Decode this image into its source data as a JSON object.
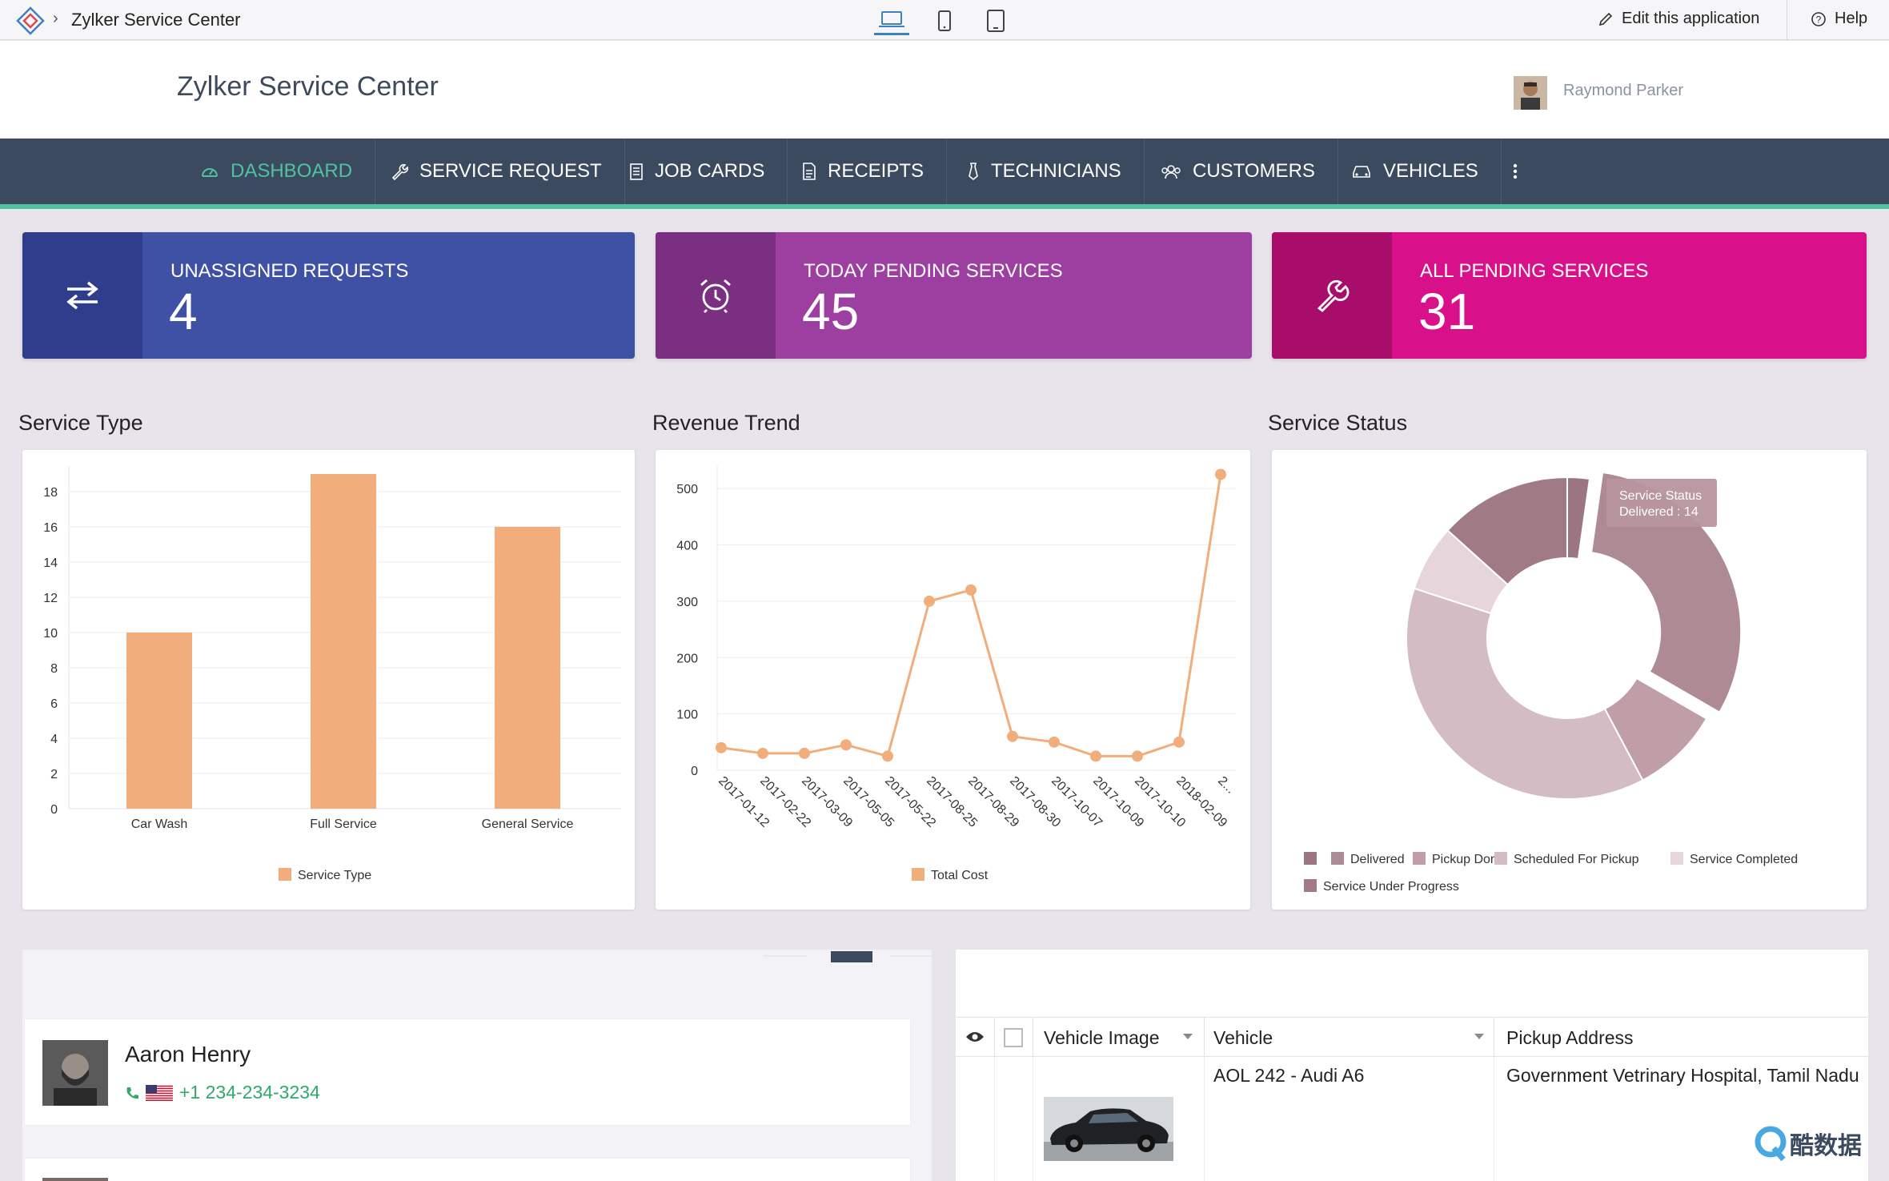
{
  "appbar": {
    "breadcrumb_sep": "›",
    "app_name": "Zylker Service Center",
    "edit_label": "Edit this application",
    "help_label": "Help",
    "devices": [
      "laptop-icon",
      "mobile-icon",
      "tablet-icon"
    ]
  },
  "header": {
    "title": "Zylker Service Center",
    "user_name": "Raymond Parker"
  },
  "nav": {
    "items": [
      {
        "label": "DASHBOARD",
        "icon": "dashboard-icon",
        "active": true
      },
      {
        "label": "SERVICE REQUEST",
        "icon": "wrench-icon"
      },
      {
        "label": "JOB CARDS",
        "icon": "clipboard-icon"
      },
      {
        "label": "RECEIPTS",
        "icon": "document-icon"
      },
      {
        "label": "TECHNICIANS",
        "icon": "tie-icon"
      },
      {
        "label": "CUSTOMERS",
        "icon": "users-icon"
      },
      {
        "label": "VEHICLES",
        "icon": "car-icon"
      }
    ],
    "more_icon": "more-vertical-icon"
  },
  "kpis": [
    {
      "label": "UNASSIGNED REQUESTS",
      "value": "4",
      "icon": "swap-arrows-icon",
      "color": "#3f51a5",
      "icon_bg": "#2e3d8c"
    },
    {
      "label": "TODAY PENDING SERVICES",
      "value": "45",
      "icon": "alarm-clock-icon",
      "color": "#9c3fa1",
      "icon_bg": "#7a2f80"
    },
    {
      "label": "ALL PENDING SERVICES",
      "value": "31",
      "icon": "wrench-icon",
      "color": "#d8108a",
      "icon_bg": "#a80d6c"
    }
  ],
  "sections": {
    "service_type": "Service Type",
    "revenue_trend": "Revenue Trend",
    "service_status": "Service Status"
  },
  "chart_data": [
    {
      "type": "bar",
      "title": "Service Type",
      "categories": [
        "Car Wash",
        "Full Service",
        "General Service"
      ],
      "series": [
        {
          "name": "Service Type",
          "values": [
            10,
            19,
            16
          ]
        }
      ],
      "ylim": [
        0,
        19
      ],
      "yticks": [
        0,
        2,
        4,
        6,
        8,
        10,
        12,
        14,
        16,
        18
      ],
      "grid": true,
      "legend": "bottom",
      "color": "#f2ad7d"
    },
    {
      "type": "line",
      "title": "Revenue Trend",
      "x": [
        "2017-01-12",
        "2017-02-22",
        "2017-03-09",
        "2017-05-05",
        "2017-05-22",
        "2017-08-25",
        "2017-08-29",
        "2017-08-30",
        "2017-10-07",
        "2017-10-09",
        "2017-10-10",
        "2018-02-09",
        "2..."
      ],
      "series": [
        {
          "name": "Total Cost",
          "values": [
            40,
            30,
            30,
            45,
            25,
            300,
            320,
            60,
            50,
            25,
            25,
            50,
            525
          ]
        }
      ],
      "ylim": [
        0,
        540
      ],
      "yticks": [
        0,
        100,
        200,
        300,
        400,
        500
      ],
      "grid": true,
      "legend": "bottom",
      "color": "#f2ad7d"
    },
    {
      "type": "pie",
      "title": "Service Status",
      "labels": [
        "",
        "Delivered",
        "Pickup Done",
        "Scheduled For Pickup",
        "Service Completed",
        "Service Under Progress"
      ],
      "values": [
        1,
        14,
        4,
        17,
        3,
        6
      ],
      "colors": [
        "#9c7582",
        "#ad8a94",
        "#bf9ea7",
        "#d3bcc3",
        "#e6d5da",
        "#a07a84"
      ],
      "legend": "bottom",
      "tooltip": {
        "title": "Service Status",
        "text": "Delivered : 14"
      }
    }
  ],
  "contact": {
    "name": "Aaron Henry",
    "phone": "+1 234-234-3234"
  },
  "grid": {
    "columns": [
      "Vehicle Image",
      "Vehicle",
      "Pickup Address"
    ],
    "rows": [
      {
        "vehicle": "AOL 242 - Audi A6",
        "address": "Government Vetrinary Hospital, Tamil Nadu"
      }
    ]
  },
  "watermark": "酷数据"
}
